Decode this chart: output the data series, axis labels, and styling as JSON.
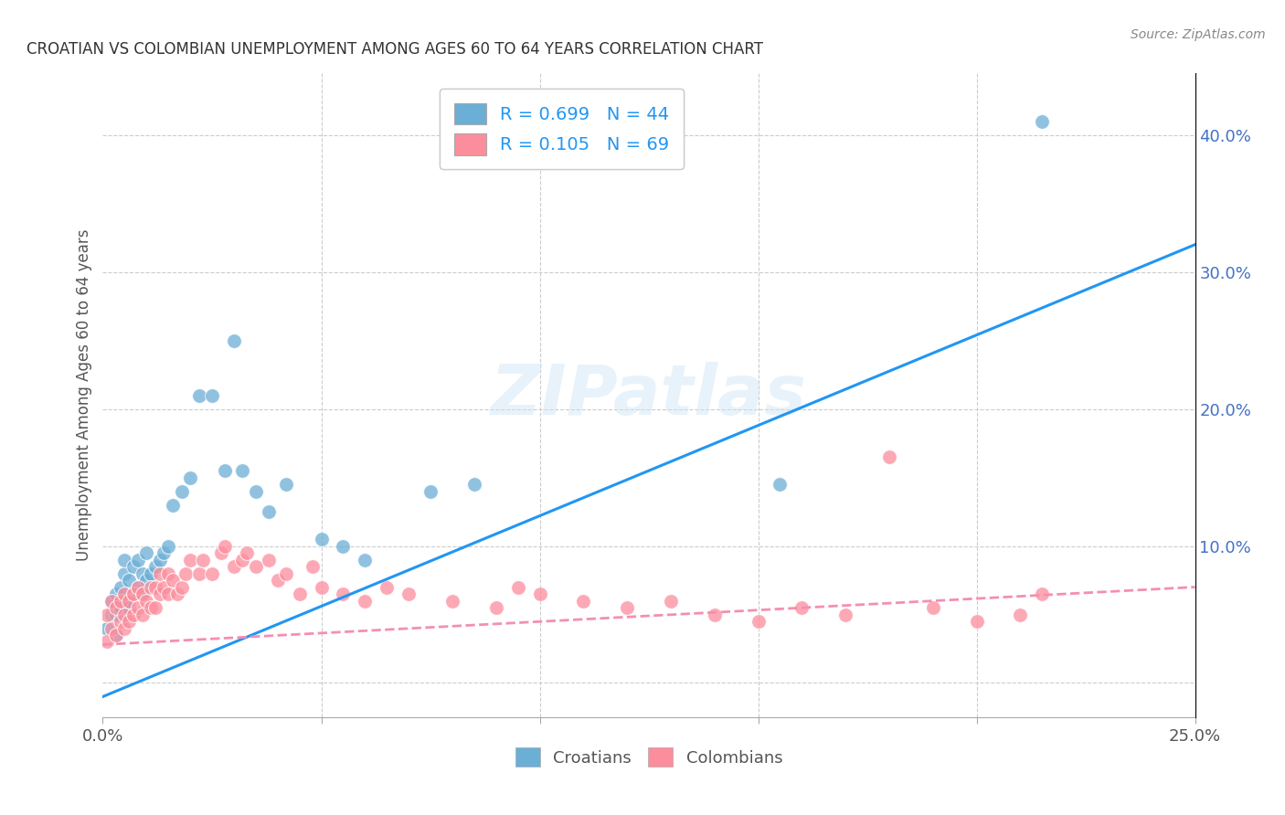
{
  "title": "CROATIAN VS COLOMBIAN UNEMPLOYMENT AMONG AGES 60 TO 64 YEARS CORRELATION CHART",
  "source_text": "Source: ZipAtlas.com",
  "ylabel": "Unemployment Among Ages 60 to 64 years",
  "xlim": [
    0.0,
    0.25
  ],
  "ylim": [
    -0.025,
    0.445
  ],
  "xticks": [
    0.0,
    0.05,
    0.1,
    0.15,
    0.2,
    0.25
  ],
  "xticklabels": [
    "0.0%",
    "",
    "",
    "",
    "",
    "25.0%"
  ],
  "yticks_right": [
    0.0,
    0.1,
    0.2,
    0.3,
    0.4
  ],
  "ytick_right_labels": [
    "",
    "10.0%",
    "20.0%",
    "30.0%",
    "40.0%"
  ],
  "blue_R": 0.699,
  "blue_N": 44,
  "pink_R": 0.105,
  "pink_N": 69,
  "blue_color": "#6baed6",
  "pink_color": "#fc8d9c",
  "blue_line_color": "#2196F3",
  "pink_line_color": "#f48fb1",
  "watermark": "ZIPatlas",
  "legend_text_color": "#2196F3",
  "blue_line_x0": 0.0,
  "blue_line_y0": -0.01,
  "blue_line_x1": 0.25,
  "blue_line_y1": 0.32,
  "pink_line_x0": 0.0,
  "pink_line_y0": 0.028,
  "pink_line_x1": 0.25,
  "pink_line_y1": 0.07,
  "croatians_x": [
    0.001,
    0.002,
    0.002,
    0.003,
    0.003,
    0.003,
    0.004,
    0.004,
    0.005,
    0.005,
    0.005,
    0.006,
    0.006,
    0.007,
    0.007,
    0.008,
    0.008,
    0.009,
    0.009,
    0.01,
    0.01,
    0.011,
    0.012,
    0.013,
    0.014,
    0.015,
    0.016,
    0.018,
    0.02,
    0.022,
    0.025,
    0.028,
    0.03,
    0.032,
    0.035,
    0.038,
    0.042,
    0.05,
    0.055,
    0.06,
    0.075,
    0.085,
    0.155,
    0.215
  ],
  "croatians_y": [
    0.04,
    0.05,
    0.06,
    0.035,
    0.05,
    0.065,
    0.055,
    0.07,
    0.06,
    0.08,
    0.09,
    0.055,
    0.075,
    0.065,
    0.085,
    0.07,
    0.09,
    0.065,
    0.08,
    0.075,
    0.095,
    0.08,
    0.085,
    0.09,
    0.095,
    0.1,
    0.13,
    0.14,
    0.15,
    0.21,
    0.21,
    0.155,
    0.25,
    0.155,
    0.14,
    0.125,
    0.145,
    0.105,
    0.1,
    0.09,
    0.14,
    0.145,
    0.145,
    0.41
  ],
  "colombians_x": [
    0.001,
    0.001,
    0.002,
    0.002,
    0.003,
    0.003,
    0.004,
    0.004,
    0.005,
    0.005,
    0.005,
    0.006,
    0.006,
    0.007,
    0.007,
    0.008,
    0.008,
    0.009,
    0.009,
    0.01,
    0.011,
    0.011,
    0.012,
    0.012,
    0.013,
    0.013,
    0.014,
    0.015,
    0.015,
    0.016,
    0.017,
    0.018,
    0.019,
    0.02,
    0.022,
    0.023,
    0.025,
    0.027,
    0.028,
    0.03,
    0.032,
    0.033,
    0.035,
    0.038,
    0.04,
    0.042,
    0.045,
    0.048,
    0.05,
    0.055,
    0.06,
    0.065,
    0.07,
    0.08,
    0.09,
    0.095,
    0.1,
    0.11,
    0.12,
    0.13,
    0.14,
    0.15,
    0.16,
    0.17,
    0.18,
    0.19,
    0.2,
    0.21,
    0.215
  ],
  "colombians_y": [
    0.03,
    0.05,
    0.04,
    0.06,
    0.035,
    0.055,
    0.045,
    0.06,
    0.04,
    0.05,
    0.065,
    0.045,
    0.06,
    0.05,
    0.065,
    0.055,
    0.07,
    0.05,
    0.065,
    0.06,
    0.055,
    0.07,
    0.055,
    0.07,
    0.065,
    0.08,
    0.07,
    0.065,
    0.08,
    0.075,
    0.065,
    0.07,
    0.08,
    0.09,
    0.08,
    0.09,
    0.08,
    0.095,
    0.1,
    0.085,
    0.09,
    0.095,
    0.085,
    0.09,
    0.075,
    0.08,
    0.065,
    0.085,
    0.07,
    0.065,
    0.06,
    0.07,
    0.065,
    0.06,
    0.055,
    0.07,
    0.065,
    0.06,
    0.055,
    0.06,
    0.05,
    0.045,
    0.055,
    0.05,
    0.165,
    0.055,
    0.045,
    0.05,
    0.065
  ]
}
